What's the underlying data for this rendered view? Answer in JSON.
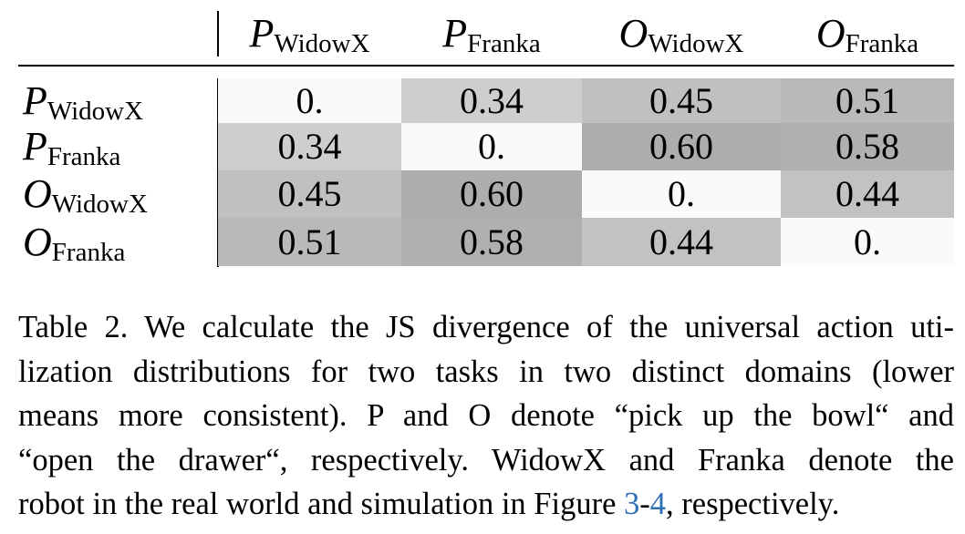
{
  "table": {
    "columns": [
      {
        "symbol": "P",
        "subscript": "WidowX"
      },
      {
        "symbol": "P",
        "subscript": "Franka"
      },
      {
        "symbol": "O",
        "subscript": "WidowX"
      },
      {
        "symbol": "O",
        "subscript": "Franka"
      }
    ],
    "rows": [
      {
        "label": {
          "symbol": "P",
          "subscript": "WidowX"
        },
        "cells": [
          "0.",
          "0.34",
          "0.45",
          "0.51"
        ]
      },
      {
        "label": {
          "symbol": "P",
          "subscript": "Franka"
        },
        "cells": [
          "0.34",
          "0.",
          "0.60",
          "0.58"
        ]
      },
      {
        "label": {
          "symbol": "O",
          "subscript": "WidowX"
        },
        "cells": [
          "0.45",
          "0.60",
          "0.",
          "0.44"
        ]
      },
      {
        "label": {
          "symbol": "O",
          "subscript": "Franka"
        },
        "cells": [
          "0.51",
          "0.58",
          "0.44",
          "0."
        ]
      }
    ]
  },
  "caption": {
    "lines": [
      "Table 2. We calculate the JS divergence of the universal action uti-",
      "lization distributions for two tasks in two distinct domains (lower",
      "means more consistent). P and O denote “pick up the bowl“ and",
      "“open the drawer“, respectively. WidowX and Franka denote the"
    ],
    "last_line": {
      "before": "robot in the real world and simulation in Figure ",
      "link1": "3",
      "dash": "-",
      "link2": "4",
      "after": ", respectively."
    }
  }
}
